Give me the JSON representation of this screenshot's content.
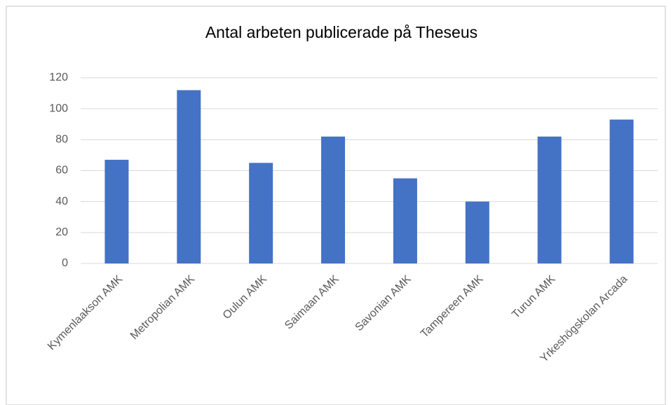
{
  "chart_data": {
    "type": "bar",
    "title": "Antal arbeten publicerade på Theseus",
    "categories": [
      "Kymenlaakson AMK",
      "Metropolian AMK",
      "Oulun AMK",
      "Saimaan AMK",
      "Savonian AMK",
      "Tampereen AMK",
      "Turun AMK",
      "Yrkeshögskolan Arcada"
    ],
    "values": [
      67,
      112,
      65,
      82,
      55,
      40,
      82,
      93
    ],
    "color": "#4472c4",
    "ylim": [
      0,
      120
    ],
    "yticks": [
      0,
      20,
      40,
      60,
      80,
      100,
      120
    ],
    "grid": true
  }
}
